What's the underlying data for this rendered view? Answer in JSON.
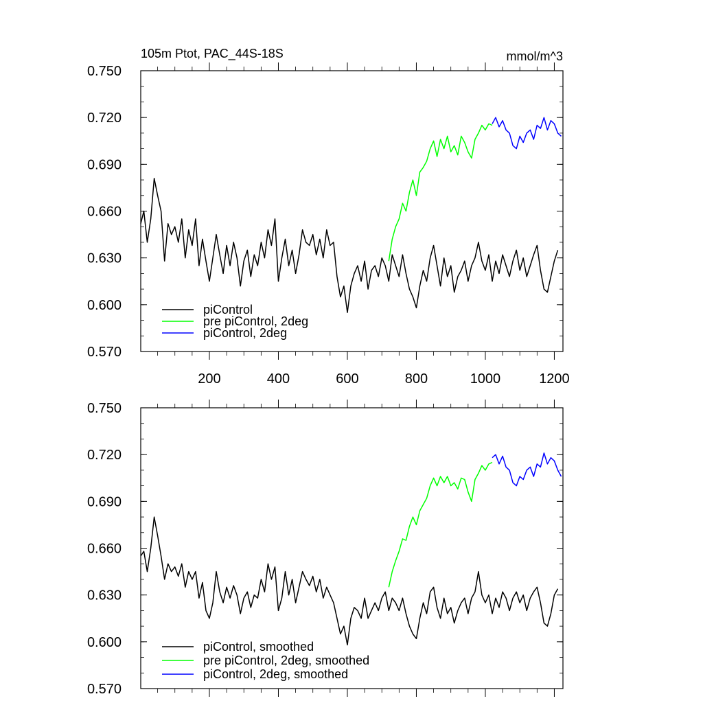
{
  "chart_data": [
    {
      "type": "line",
      "title_left": "105m Ptot, PAC_44S-18S",
      "title_right": "mmol/m^3",
      "xlim": [
        1,
        1225
      ],
      "ylim": [
        0.57,
        0.75
      ],
      "xticks": [
        200,
        400,
        600,
        800,
        1000,
        1200
      ],
      "xtick_labels": [
        "200",
        "400",
        "600",
        "800",
        "1000",
        "1200"
      ],
      "yticks": [
        0.57,
        0.6,
        0.63,
        0.66,
        0.69,
        0.72,
        0.75
      ],
      "ytick_labels": [
        "0.570",
        "0.600",
        "0.630",
        "0.660",
        "0.690",
        "0.720",
        "0.750"
      ],
      "legend": [
        {
          "label": "piControl",
          "color": "#000000"
        },
        {
          "label": "pre piControl, 2deg",
          "color": "#00ff00"
        },
        {
          "label": "piControl, 2deg",
          "color": "#0000ff"
        }
      ],
      "series": [
        {
          "color": "#000000",
          "x": [
            1,
            10,
            20,
            30,
            40,
            50,
            60,
            70,
            80,
            90,
            100,
            110,
            120,
            130,
            140,
            150,
            160,
            170,
            180,
            190,
            200,
            210,
            220,
            230,
            240,
            250,
            260,
            270,
            280,
            290,
            300,
            310,
            320,
            330,
            340,
            350,
            360,
            370,
            380,
            390,
            400,
            410,
            420,
            430,
            440,
            450,
            460,
            470,
            480,
            490,
            500,
            510,
            520,
            530,
            540,
            550,
            560,
            570,
            580,
            590,
            600,
            610,
            620,
            630,
            640,
            650,
            660,
            670,
            680,
            690,
            700,
            710,
            720,
            730,
            740,
            750,
            760,
            770,
            780,
            790,
            800,
            810,
            820,
            830,
            840,
            850,
            860,
            870,
            880,
            890,
            900,
            910,
            920,
            930,
            940,
            950,
            960,
            970,
            980,
            990,
            1000,
            1010,
            1020,
            1030,
            1040,
            1050,
            1060,
            1070,
            1080,
            1090,
            1100,
            1110,
            1120,
            1130,
            1140,
            1150,
            1160,
            1170,
            1180,
            1190,
            1200,
            1210
          ],
          "y": [
            0.652,
            0.66,
            0.64,
            0.655,
            0.681,
            0.67,
            0.66,
            0.628,
            0.652,
            0.645,
            0.65,
            0.64,
            0.655,
            0.63,
            0.648,
            0.638,
            0.655,
            0.625,
            0.642,
            0.628,
            0.615,
            0.63,
            0.645,
            0.632,
            0.62,
            0.638,
            0.625,
            0.64,
            0.63,
            0.612,
            0.628,
            0.635,
            0.618,
            0.632,
            0.625,
            0.64,
            0.63,
            0.648,
            0.638,
            0.655,
            0.615,
            0.63,
            0.642,
            0.625,
            0.635,
            0.62,
            0.632,
            0.648,
            0.64,
            0.638,
            0.645,
            0.632,
            0.642,
            0.63,
            0.648,
            0.638,
            0.64,
            0.618,
            0.605,
            0.612,
            0.595,
            0.612,
            0.62,
            0.625,
            0.615,
            0.628,
            0.61,
            0.622,
            0.625,
            0.618,
            0.63,
            0.625,
            0.615,
            0.632,
            0.625,
            0.618,
            0.632,
            0.62,
            0.61,
            0.605,
            0.598,
            0.612,
            0.622,
            0.615,
            0.63,
            0.638,
            0.625,
            0.612,
            0.63,
            0.618,
            0.625,
            0.608,
            0.618,
            0.622,
            0.628,
            0.615,
            0.625,
            0.63,
            0.64,
            0.628,
            0.622,
            0.632,
            0.615,
            0.628,
            0.62,
            0.632,
            0.625,
            0.618,
            0.628,
            0.635,
            0.622,
            0.63,
            0.618,
            0.625,
            0.632,
            0.638,
            0.622,
            0.61,
            0.608,
            0.618,
            0.628,
            0.635
          ]
        },
        {
          "color": "#00ff00",
          "x": [
            720,
            730,
            740,
            750,
            760,
            770,
            780,
            790,
            800,
            810,
            820,
            830,
            840,
            850,
            860,
            870,
            880,
            890,
            900,
            910,
            920,
            930,
            940,
            950,
            960,
            970,
            980,
            990,
            1000,
            1010,
            1020
          ],
          "y": [
            0.628,
            0.642,
            0.65,
            0.655,
            0.665,
            0.66,
            0.672,
            0.68,
            0.67,
            0.685,
            0.688,
            0.692,
            0.7,
            0.705,
            0.695,
            0.706,
            0.7,
            0.708,
            0.698,
            0.702,
            0.696,
            0.708,
            0.704,
            0.698,
            0.694,
            0.706,
            0.71,
            0.715,
            0.712,
            0.716,
            0.715
          ]
        },
        {
          "color": "#0000ff",
          "x": [
            1020,
            1030,
            1040,
            1050,
            1060,
            1070,
            1080,
            1090,
            1100,
            1110,
            1120,
            1130,
            1140,
            1150,
            1160,
            1170,
            1180,
            1190,
            1200,
            1210,
            1220
          ],
          "y": [
            0.716,
            0.72,
            0.714,
            0.718,
            0.712,
            0.71,
            0.702,
            0.7,
            0.708,
            0.704,
            0.71,
            0.712,
            0.706,
            0.715,
            0.713,
            0.72,
            0.712,
            0.718,
            0.716,
            0.71,
            0.708
          ]
        }
      ]
    },
    {
      "type": "line",
      "xlim": [
        1,
        1225
      ],
      "ylim": [
        0.57,
        0.75
      ],
      "xticks": [
        200,
        400,
        600,
        800,
        1000,
        1200
      ],
      "yticks": [
        0.57,
        0.6,
        0.63,
        0.66,
        0.69,
        0.72,
        0.75
      ],
      "ytick_labels": [
        "0.570",
        "0.600",
        "0.630",
        "0.660",
        "0.690",
        "0.720",
        "0.750"
      ],
      "legend": [
        {
          "label": "piControl, smoothed",
          "color": "#000000"
        },
        {
          "label": "pre piControl, 2deg, smoothed",
          "color": "#00ff00"
        },
        {
          "label": "piControl, 2deg, smoothed",
          "color": "#0000ff"
        }
      ],
      "series": [
        {
          "color": "#000000",
          "x": [
            1,
            10,
            20,
            30,
            40,
            50,
            60,
            70,
            80,
            90,
            100,
            110,
            120,
            130,
            140,
            150,
            160,
            170,
            180,
            190,
            200,
            210,
            220,
            230,
            240,
            250,
            260,
            270,
            280,
            290,
            300,
            310,
            320,
            330,
            340,
            350,
            360,
            370,
            380,
            390,
            400,
            410,
            420,
            430,
            440,
            450,
            460,
            470,
            480,
            490,
            500,
            510,
            520,
            530,
            540,
            550,
            560,
            570,
            580,
            590,
            600,
            610,
            620,
            630,
            640,
            650,
            660,
            670,
            680,
            690,
            700,
            710,
            720,
            730,
            740,
            750,
            760,
            770,
            780,
            790,
            800,
            810,
            820,
            830,
            840,
            850,
            860,
            870,
            880,
            890,
            900,
            910,
            920,
            930,
            940,
            950,
            960,
            970,
            980,
            990,
            1000,
            1010,
            1020,
            1030,
            1040,
            1050,
            1060,
            1070,
            1080,
            1090,
            1100,
            1110,
            1120,
            1130,
            1140,
            1150,
            1160,
            1170,
            1180,
            1190,
            1200,
            1210
          ],
          "y": [
            0.655,
            0.658,
            0.645,
            0.66,
            0.68,
            0.668,
            0.655,
            0.64,
            0.65,
            0.645,
            0.648,
            0.642,
            0.65,
            0.635,
            0.645,
            0.64,
            0.645,
            0.628,
            0.638,
            0.62,
            0.615,
            0.625,
            0.645,
            0.632,
            0.625,
            0.635,
            0.628,
            0.636,
            0.63,
            0.618,
            0.628,
            0.632,
            0.622,
            0.63,
            0.628,
            0.64,
            0.632,
            0.65,
            0.64,
            0.648,
            0.62,
            0.628,
            0.645,
            0.63,
            0.64,
            0.625,
            0.635,
            0.645,
            0.64,
            0.636,
            0.642,
            0.632,
            0.64,
            0.628,
            0.635,
            0.63,
            0.625,
            0.615,
            0.605,
            0.61,
            0.598,
            0.615,
            0.622,
            0.62,
            0.615,
            0.628,
            0.615,
            0.62,
            0.625,
            0.62,
            0.628,
            0.632,
            0.62,
            0.628,
            0.625,
            0.62,
            0.628,
            0.618,
            0.61,
            0.605,
            0.602,
            0.615,
            0.625,
            0.618,
            0.632,
            0.635,
            0.622,
            0.615,
            0.628,
            0.618,
            0.622,
            0.612,
            0.62,
            0.625,
            0.628,
            0.618,
            0.628,
            0.632,
            0.645,
            0.63,
            0.625,
            0.63,
            0.618,
            0.628,
            0.622,
            0.632,
            0.628,
            0.62,
            0.628,
            0.632,
            0.625,
            0.63,
            0.62,
            0.628,
            0.632,
            0.635,
            0.625,
            0.612,
            0.61,
            0.618,
            0.63,
            0.634
          ]
        },
        {
          "color": "#00ff00",
          "x": [
            720,
            730,
            740,
            750,
            760,
            770,
            780,
            790,
            800,
            810,
            820,
            830,
            840,
            850,
            860,
            870,
            880,
            890,
            900,
            910,
            920,
            930,
            940,
            950,
            960,
            970,
            980,
            990,
            1000,
            1010,
            1020
          ],
          "y": [
            0.635,
            0.645,
            0.652,
            0.658,
            0.666,
            0.665,
            0.674,
            0.68,
            0.675,
            0.684,
            0.688,
            0.692,
            0.7,
            0.705,
            0.7,
            0.706,
            0.702,
            0.706,
            0.7,
            0.702,
            0.698,
            0.705,
            0.704,
            0.696,
            0.69,
            0.704,
            0.708,
            0.713,
            0.71,
            0.714,
            0.715
          ]
        },
        {
          "color": "#0000ff",
          "x": [
            1020,
            1030,
            1040,
            1050,
            1060,
            1070,
            1080,
            1090,
            1100,
            1110,
            1120,
            1130,
            1140,
            1150,
            1160,
            1170,
            1180,
            1190,
            1200,
            1210,
            1220
          ],
          "y": [
            0.718,
            0.72,
            0.714,
            0.719,
            0.712,
            0.71,
            0.702,
            0.7,
            0.706,
            0.704,
            0.71,
            0.712,
            0.706,
            0.714,
            0.712,
            0.721,
            0.714,
            0.718,
            0.716,
            0.71,
            0.706
          ]
        }
      ]
    }
  ]
}
